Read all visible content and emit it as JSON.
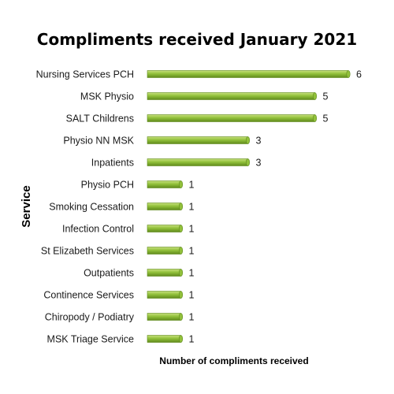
{
  "chart_data": {
    "type": "bar",
    "orientation": "horizontal",
    "title": "Compliments received January 2021",
    "xlabel": "Number of compliments received",
    "ylabel": "Service",
    "categories": [
      "Nursing Services PCH",
      "MSK Physio",
      "SALT Childrens",
      "Physio NN MSK",
      "Inpatients",
      "Physio PCH",
      "Smoking Cessation",
      "Infection Control",
      "St Elizabeth Services",
      "Outpatients",
      "Continence Services",
      "Chiropody / Podiatry",
      "MSK Triage Service"
    ],
    "values": [
      6,
      5,
      5,
      3,
      3,
      1,
      1,
      1,
      1,
      1,
      1,
      1,
      1
    ],
    "xlim": [
      0,
      6
    ],
    "grid": false,
    "legend": "none",
    "bar_color": "#92c13b",
    "bar_highlight": "#c8e07e",
    "bar_shadow": "#5f8a1c"
  }
}
